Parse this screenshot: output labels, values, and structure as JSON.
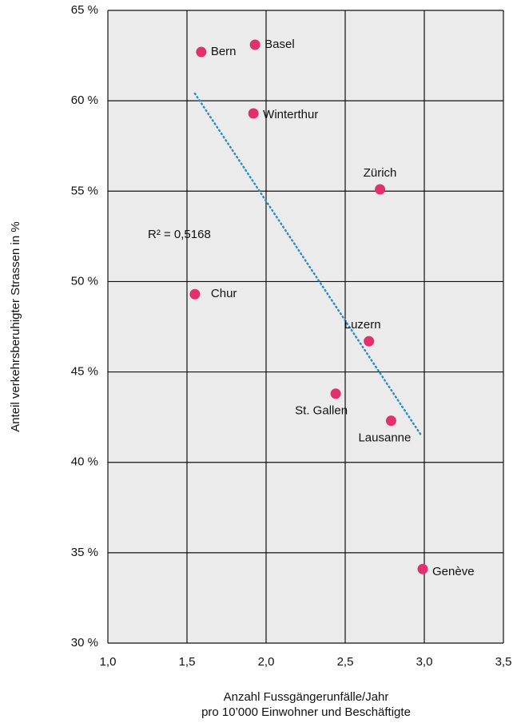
{
  "chart_data": {
    "type": "scatter",
    "x_label": [
      "Anzahl Fussgängerunfälle/Jahr",
      "pro 10’000 Einwohner und Beschäftigte"
    ],
    "y_label": "Anteil verkehrsberuhigter Strassen in %",
    "labels": [
      "Bern",
      "Basel",
      "Winterthur",
      "Zürich",
      "Chur",
      "Luzern",
      "St. Gallen",
      "Lausanne",
      "Genève"
    ],
    "x": [
      1.59,
      1.93,
      1.92,
      2.72,
      1.55,
      2.65,
      2.44,
      2.79,
      2.99
    ],
    "y": [
      62.7,
      63.1,
      59.3,
      55.1,
      49.3,
      46.7,
      43.8,
      42.3,
      34.1
    ],
    "color": "#e2306f",
    "trendline": {
      "x": [
        1.55,
        2.98
      ],
      "y": [
        60.4,
        41.5
      ],
      "color": "#2a8ec8",
      "label": "R² = 0,5168"
    },
    "xlim": [
      1.0,
      3.5
    ],
    "xticks": [
      {
        "value": 1.0,
        "label": "1,0"
      },
      {
        "value": 1.5,
        "label": "1,5"
      },
      {
        "value": 2.0,
        "label": "2,0"
      },
      {
        "value": 2.5,
        "label": "2,5"
      },
      {
        "value": 3.0,
        "label": "3,0"
      },
      {
        "value": 3.5,
        "label": "3,5"
      }
    ],
    "ylim": [
      30,
      65
    ],
    "yticks": [
      {
        "value": 30,
        "label": "30 %"
      },
      {
        "value": 35,
        "label": "35 %"
      },
      {
        "value": 40,
        "label": "40 %"
      },
      {
        "value": 45,
        "label": "45 %"
      },
      {
        "value": 50,
        "label": "50 %"
      },
      {
        "value": 55,
        "label": "55 %"
      },
      {
        "value": 60,
        "label": "60 %"
      },
      {
        "value": 65,
        "label": "65 %"
      }
    ],
    "grid": true
  }
}
